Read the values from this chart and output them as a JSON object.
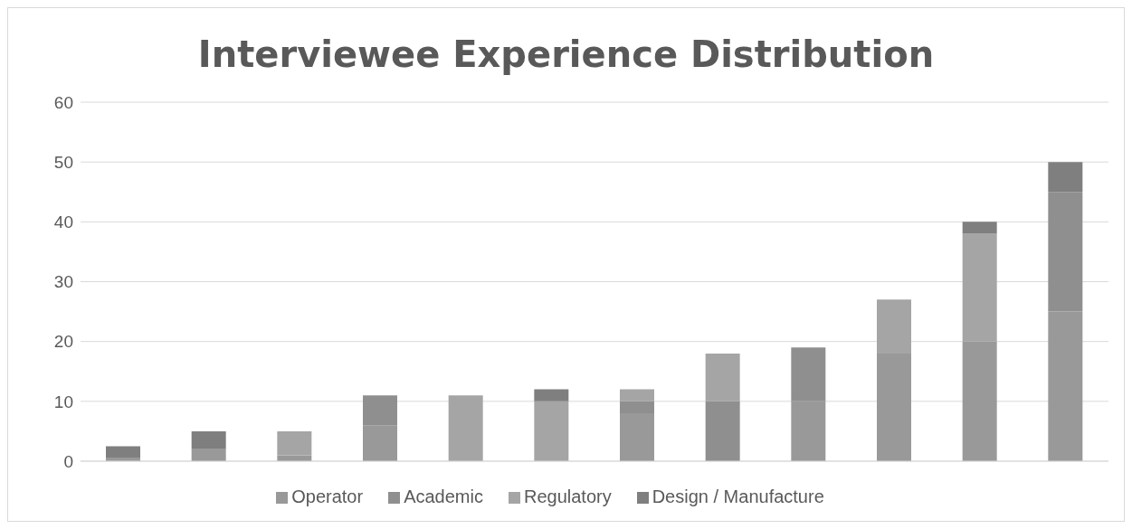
{
  "chart_data": {
    "type": "bar",
    "title": "Interviewee Experience Distribution",
    "stacked": true,
    "categories": [
      null,
      null,
      null,
      null,
      null,
      null,
      null,
      null,
      null,
      null,
      null,
      null
    ],
    "series": [
      {
        "name": "Operator",
        "color": "#999999",
        "values": [
          0.5,
          2,
          1,
          6,
          0,
          0,
          8,
          0,
          10,
          18,
          20,
          25
        ]
      },
      {
        "name": "Academic",
        "color": "#8f8f8f",
        "values": [
          0,
          0,
          0,
          5,
          0,
          0,
          2,
          10,
          9,
          0,
          0,
          20
        ]
      },
      {
        "name": "Regulatory",
        "color": "#a5a5a5",
        "values": [
          0,
          0,
          4,
          0,
          11,
          10,
          2,
          8,
          0,
          9,
          18,
          0
        ]
      },
      {
        "name": "Design / Manufacture",
        "color": "#7f7f7f",
        "values": [
          2,
          3,
          0,
          0,
          0,
          2,
          0,
          0,
          0,
          0,
          2,
          5
        ]
      }
    ],
    "ylim": [
      0,
      60
    ],
    "yticks": [
      0,
      10,
      20,
      30,
      40,
      50,
      60
    ],
    "grid": "y",
    "legend": "bottom",
    "tick_labels": "y"
  }
}
